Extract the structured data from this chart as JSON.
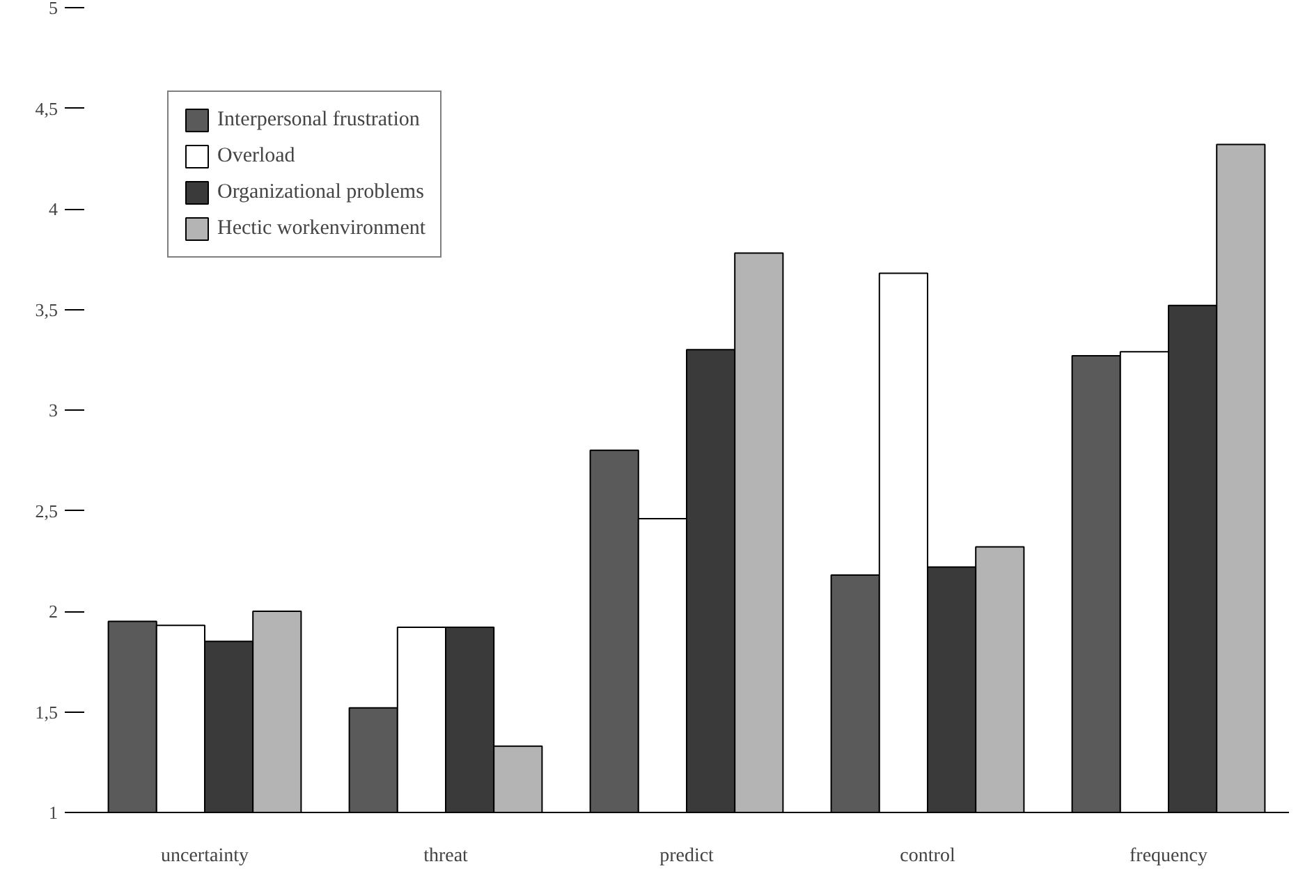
{
  "chart_data": {
    "type": "bar",
    "categories": [
      "uncertainty",
      "threat",
      "predict",
      "control",
      "frequency"
    ],
    "series": [
      {
        "name": "Interpersonal frustration",
        "color": "#5a5a5a",
        "values": [
          1.95,
          1.52,
          2.8,
          2.18,
          3.27
        ]
      },
      {
        "name": "Overload",
        "color": "#ffffff",
        "values": [
          1.93,
          1.92,
          2.46,
          3.68,
          3.29
        ]
      },
      {
        "name": "Organizational problems",
        "color": "#3a3a3a",
        "values": [
          1.85,
          1.92,
          3.3,
          2.22,
          3.52
        ]
      },
      {
        "name": "Hectic workenvironment",
        "color": "#b4b4b4",
        "values": [
          2.0,
          1.33,
          3.78,
          2.32,
          4.32
        ]
      }
    ],
    "ylim": [
      1,
      5
    ],
    "yticks": [
      1,
      {
        "value": 1.5,
        "label": "1,5"
      },
      2,
      {
        "value": 2.5,
        "label": "2,5"
      },
      3,
      {
        "value": 3.5,
        "label": "3,5"
      },
      4,
      {
        "value": 4.5,
        "label": "4,5"
      },
      5
    ],
    "grid": false,
    "legend": "top left"
  }
}
